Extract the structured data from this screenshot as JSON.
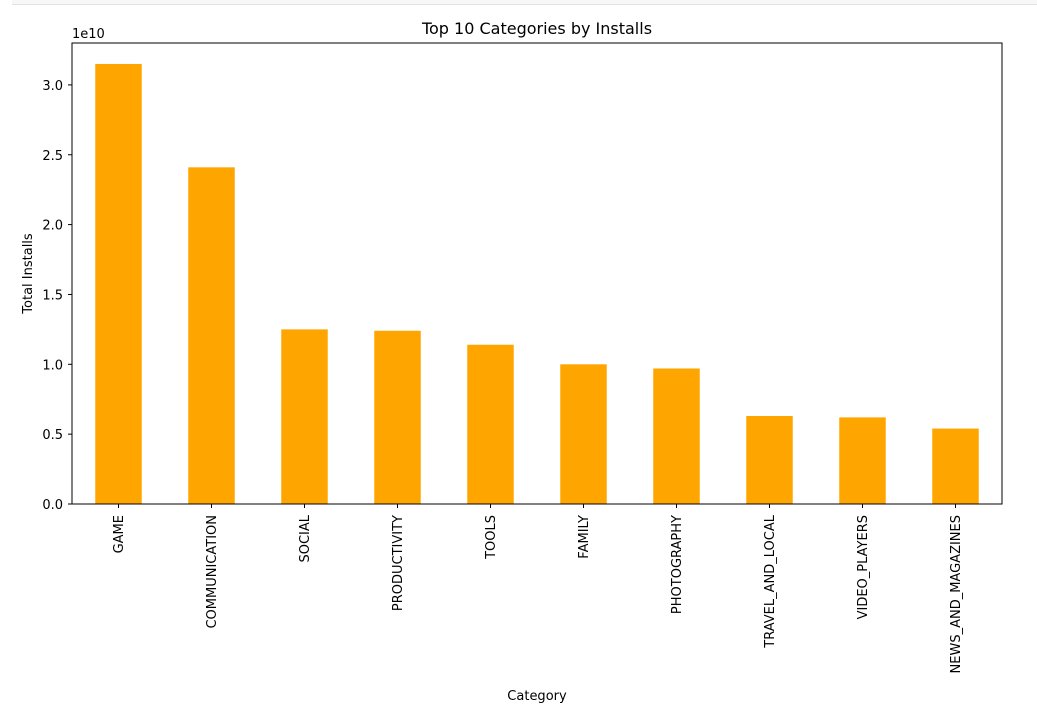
{
  "chart_data": {
    "type": "bar",
    "title": "Top 10 Categories by Installs",
    "xlabel": "Category",
    "ylabel": "Total Installs",
    "y_offset_label": "1e10",
    "categories": [
      "GAME",
      "COMMUNICATION",
      "SOCIAL",
      "PRODUCTIVITY",
      "TOOLS",
      "FAMILY",
      "PHOTOGRAPHY",
      "TRAVEL_AND_LOCAL",
      "VIDEO_PLAYERS",
      "NEWS_AND_MAGAZINES"
    ],
    "values": [
      31.5,
      24.1,
      12.5,
      12.4,
      11.4,
      10.0,
      9.7,
      6.3,
      6.2,
      5.4
    ],
    "value_scale": "x1e9",
    "y_ticks": [
      0,
      5,
      10,
      15,
      20,
      25,
      30
    ],
    "y_tick_labels": [
      "0.0",
      "0.5",
      "1.0",
      "1.5",
      "2.0",
      "2.5",
      "3.0"
    ],
    "ylim": [
      0,
      33
    ],
    "grid": false,
    "legend": false,
    "bar_color": "#ffa500"
  }
}
